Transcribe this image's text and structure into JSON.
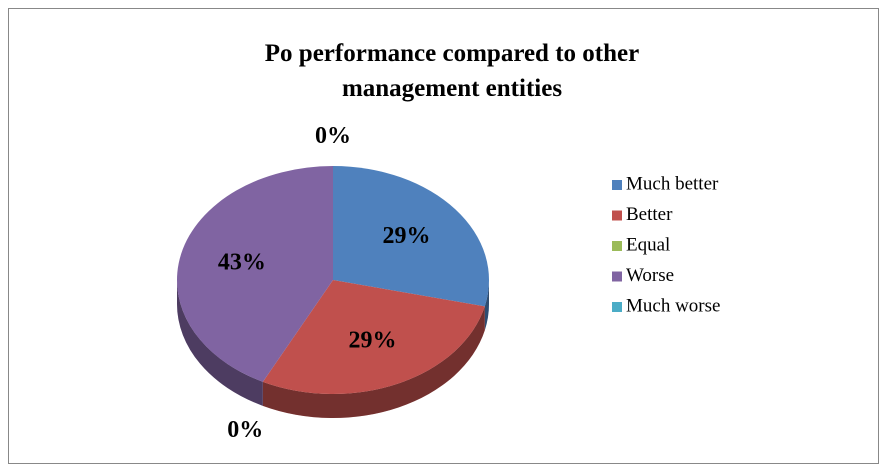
{
  "chart_data": {
    "type": "pie",
    "title": "Po performance compared to other management entities",
    "categories": [
      "Much better",
      "Better",
      "Equal",
      "Worse",
      "Much worse"
    ],
    "values": [
      29,
      29,
      0,
      43,
      0
    ],
    "value_labels": [
      "29%",
      "29%",
      "0%",
      "43%",
      "0%"
    ],
    "colors": [
      "#4f81bd",
      "#c0504d",
      "#9bbb59",
      "#8064a2",
      "#4bacc6"
    ],
    "legend": "right"
  }
}
